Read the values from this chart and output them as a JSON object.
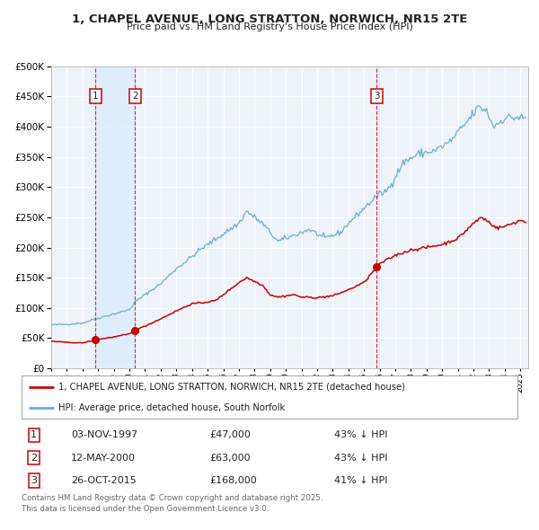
{
  "title_line1": "1, CHAPEL AVENUE, LONG STRATTON, NORWICH, NR15 2TE",
  "title_line2": "Price paid vs. HM Land Registry's House Price Index (HPI)",
  "legend_line1": "1, CHAPEL AVENUE, LONG STRATTON, NORWICH, NR15 2TE (detached house)",
  "legend_line2": "HPI: Average price, detached house, South Norfolk",
  "transactions": [
    {
      "label": "1",
      "date": "03-NOV-1997",
      "price": 47000,
      "hpi_pct": "43% ↓ HPI",
      "x": 1997.84
    },
    {
      "label": "2",
      "date": "12-MAY-2000",
      "price": 63000,
      "hpi_pct": "43% ↓ HPI",
      "x": 2000.36
    },
    {
      "label": "3",
      "date": "26-OCT-2015",
      "price": 168000,
      "hpi_pct": "41% ↓ HPI",
      "x": 2015.82
    }
  ],
  "footnote": "Contains HM Land Registry data © Crown copyright and database right 2025.\nThis data is licensed under the Open Government Licence v3.0.",
  "hpi_color": "#6baed6",
  "price_color": "#cc0000",
  "marker_color": "#cc0000",
  "vline_color": "#cc0000",
  "shade_color": "#ddeeff",
  "background_color": "#eef3fa",
  "grid_color": "#ffffff",
  "ylim": [
    0,
    500000
  ],
  "yticks": [
    0,
    50000,
    100000,
    150000,
    200000,
    250000,
    300000,
    350000,
    400000,
    450000,
    500000
  ],
  "xlim": [
    1995.0,
    2025.5
  ],
  "hpi_anchors_x": [
    1995.0,
    1996.0,
    1997.0,
    1997.84,
    1999.0,
    2000.0,
    2000.36,
    2001.0,
    2002.0,
    2003.0,
    2004.0,
    2004.5,
    2007.0,
    2007.5,
    2008.5,
    2009.5,
    2010.5,
    2011.5,
    2012.5,
    2013.5,
    2014.0,
    2015.0,
    2015.82,
    2016.5,
    2017.5,
    2018.0,
    2018.5,
    2019.5,
    2020.5,
    2021.5,
    2022.3,
    2022.8,
    2023.3,
    2024.0,
    2025.0,
    2025.4
  ],
  "hpi_anchors_y": [
    72000,
    73000,
    75000,
    82000,
    90000,
    97000,
    110000,
    122000,
    140000,
    165000,
    185000,
    196000,
    240000,
    260000,
    240000,
    210000,
    220000,
    230000,
    215000,
    225000,
    240000,
    265000,
    285000,
    295000,
    340000,
    348000,
    355000,
    360000,
    375000,
    405000,
    432000,
    428000,
    400000,
    415000,
    415000,
    412000
  ],
  "prop_anchors_x": [
    1995.0,
    1996.0,
    1997.0,
    1997.84,
    1998.5,
    1999.0,
    2000.0,
    2000.36,
    2001.0,
    2002.0,
    2003.0,
    2004.0,
    2004.5,
    2005.5,
    2007.0,
    2007.5,
    2008.5,
    2009.0,
    2009.5,
    2010.5,
    2011.0,
    2012.0,
    2013.0,
    2014.0,
    2014.5,
    2015.0,
    2015.82,
    2016.0,
    2017.0,
    2018.0,
    2019.0,
    2020.0,
    2021.0,
    2022.0,
    2022.5,
    2023.0,
    2023.5,
    2024.0,
    2024.5,
    2025.0,
    2025.4
  ],
  "prop_anchors_y": [
    45000,
    43000,
    42000,
    47000,
    50000,
    52000,
    57000,
    63000,
    70000,
    82000,
    95000,
    107000,
    108000,
    112000,
    142000,
    150000,
    138000,
    122000,
    118000,
    122000,
    118000,
    117000,
    120000,
    130000,
    136000,
    142000,
    168000,
    173000,
    187000,
    196000,
    200000,
    205000,
    215000,
    240000,
    250000,
    242000,
    232000,
    235000,
    240000,
    245000,
    242000
  ]
}
